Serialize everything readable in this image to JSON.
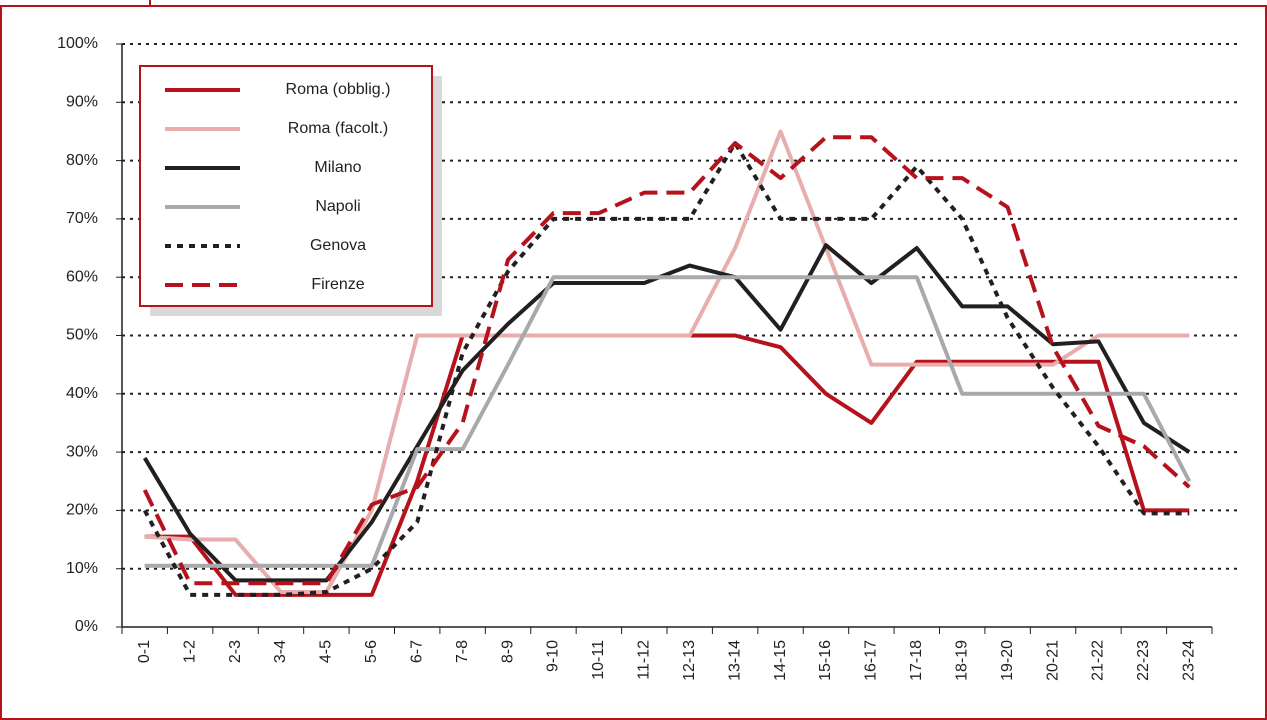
{
  "chart_data": {
    "type": "line",
    "categories": [
      "0-1",
      "1-2",
      "2-3",
      "3-4",
      "4-5",
      "5-6",
      "6-7",
      "7-8",
      "8-9",
      "9-10",
      "10-11",
      "11-12",
      "12-13",
      "13-14",
      "14-15",
      "15-16",
      "16-17",
      "17-18",
      "18-19",
      "19-20",
      "20-21",
      "21-22",
      "22-23",
      "23-24"
    ],
    "series": [
      {
        "name": "Roma (obblig.)",
        "color": "#b5121b",
        "dash": "solid",
        "values": [
          15.5,
          15.5,
          5.5,
          5.5,
          5.5,
          5.5,
          25,
          50,
          50,
          50,
          50,
          50,
          50,
          50,
          48,
          40,
          35,
          45.5,
          45.5,
          45.5,
          45.5,
          45.5,
          20,
          20
        ]
      },
      {
        "name": "Roma (facolt.)",
        "color": "#e8aeae",
        "dash": "solid",
        "values": [
          15.5,
          15,
          15,
          6,
          6,
          20,
          50,
          50,
          50,
          50,
          50,
          50,
          50,
          65,
          85,
          65,
          45,
          45,
          45,
          45,
          45,
          50,
          50,
          50
        ]
      },
      {
        "name": "Milano",
        "color": "#231f20",
        "dash": "solid",
        "values": [
          29,
          16,
          8,
          8,
          8,
          18,
          31,
          44,
          52,
          59,
          59,
          59,
          62,
          60,
          51,
          65.5,
          59,
          65,
          55,
          55,
          48.5,
          49,
          35,
          30
        ]
      },
      {
        "name": "Napoli",
        "color": "#a7a9ac",
        "dash": "solid",
        "values": [
          10.5,
          10.5,
          10.5,
          10.5,
          10.5,
          10.5,
          30.5,
          30.5,
          45,
          60,
          60,
          60,
          60,
          60,
          60,
          60,
          60,
          60,
          40,
          40,
          40,
          40,
          40,
          25
        ]
      },
      {
        "name": "Genova",
        "color": "#231f20",
        "dash": "dotted",
        "values": [
          20,
          5.5,
          5.5,
          5.5,
          6,
          10,
          18,
          47,
          61,
          70,
          70,
          70,
          70,
          83,
          70,
          70,
          70,
          79,
          70,
          53,
          41,
          31,
          19.5,
          19.5
        ]
      },
      {
        "name": "Firenze",
        "color": "#b5121b",
        "dash": "dashed",
        "values": [
          23.5,
          7.5,
          7.5,
          7.5,
          7.5,
          21,
          24,
          35,
          63,
          71,
          71,
          74.5,
          74.5,
          83,
          77,
          84,
          84,
          77,
          77,
          72,
          48,
          34.5,
          31,
          24
        ]
      }
    ],
    "ylim": [
      0,
      100
    ],
    "yticks": [
      {
        "value": 0,
        "label": "0%"
      },
      {
        "value": 10,
        "label": "10%"
      },
      {
        "value": 20,
        "label": "20%"
      },
      {
        "value": 30,
        "label": "30%"
      },
      {
        "value": 40,
        "label": "40%"
      },
      {
        "value": 50,
        "label": "50%"
      },
      {
        "value": 60,
        "label": "60%"
      },
      {
        "value": 70,
        "label": "70%"
      },
      {
        "value": 80,
        "label": "80%"
      },
      {
        "value": 90,
        "label": "90%"
      },
      {
        "value": 100,
        "label": "100%"
      }
    ],
    "grid": true,
    "legend": "upper left"
  }
}
